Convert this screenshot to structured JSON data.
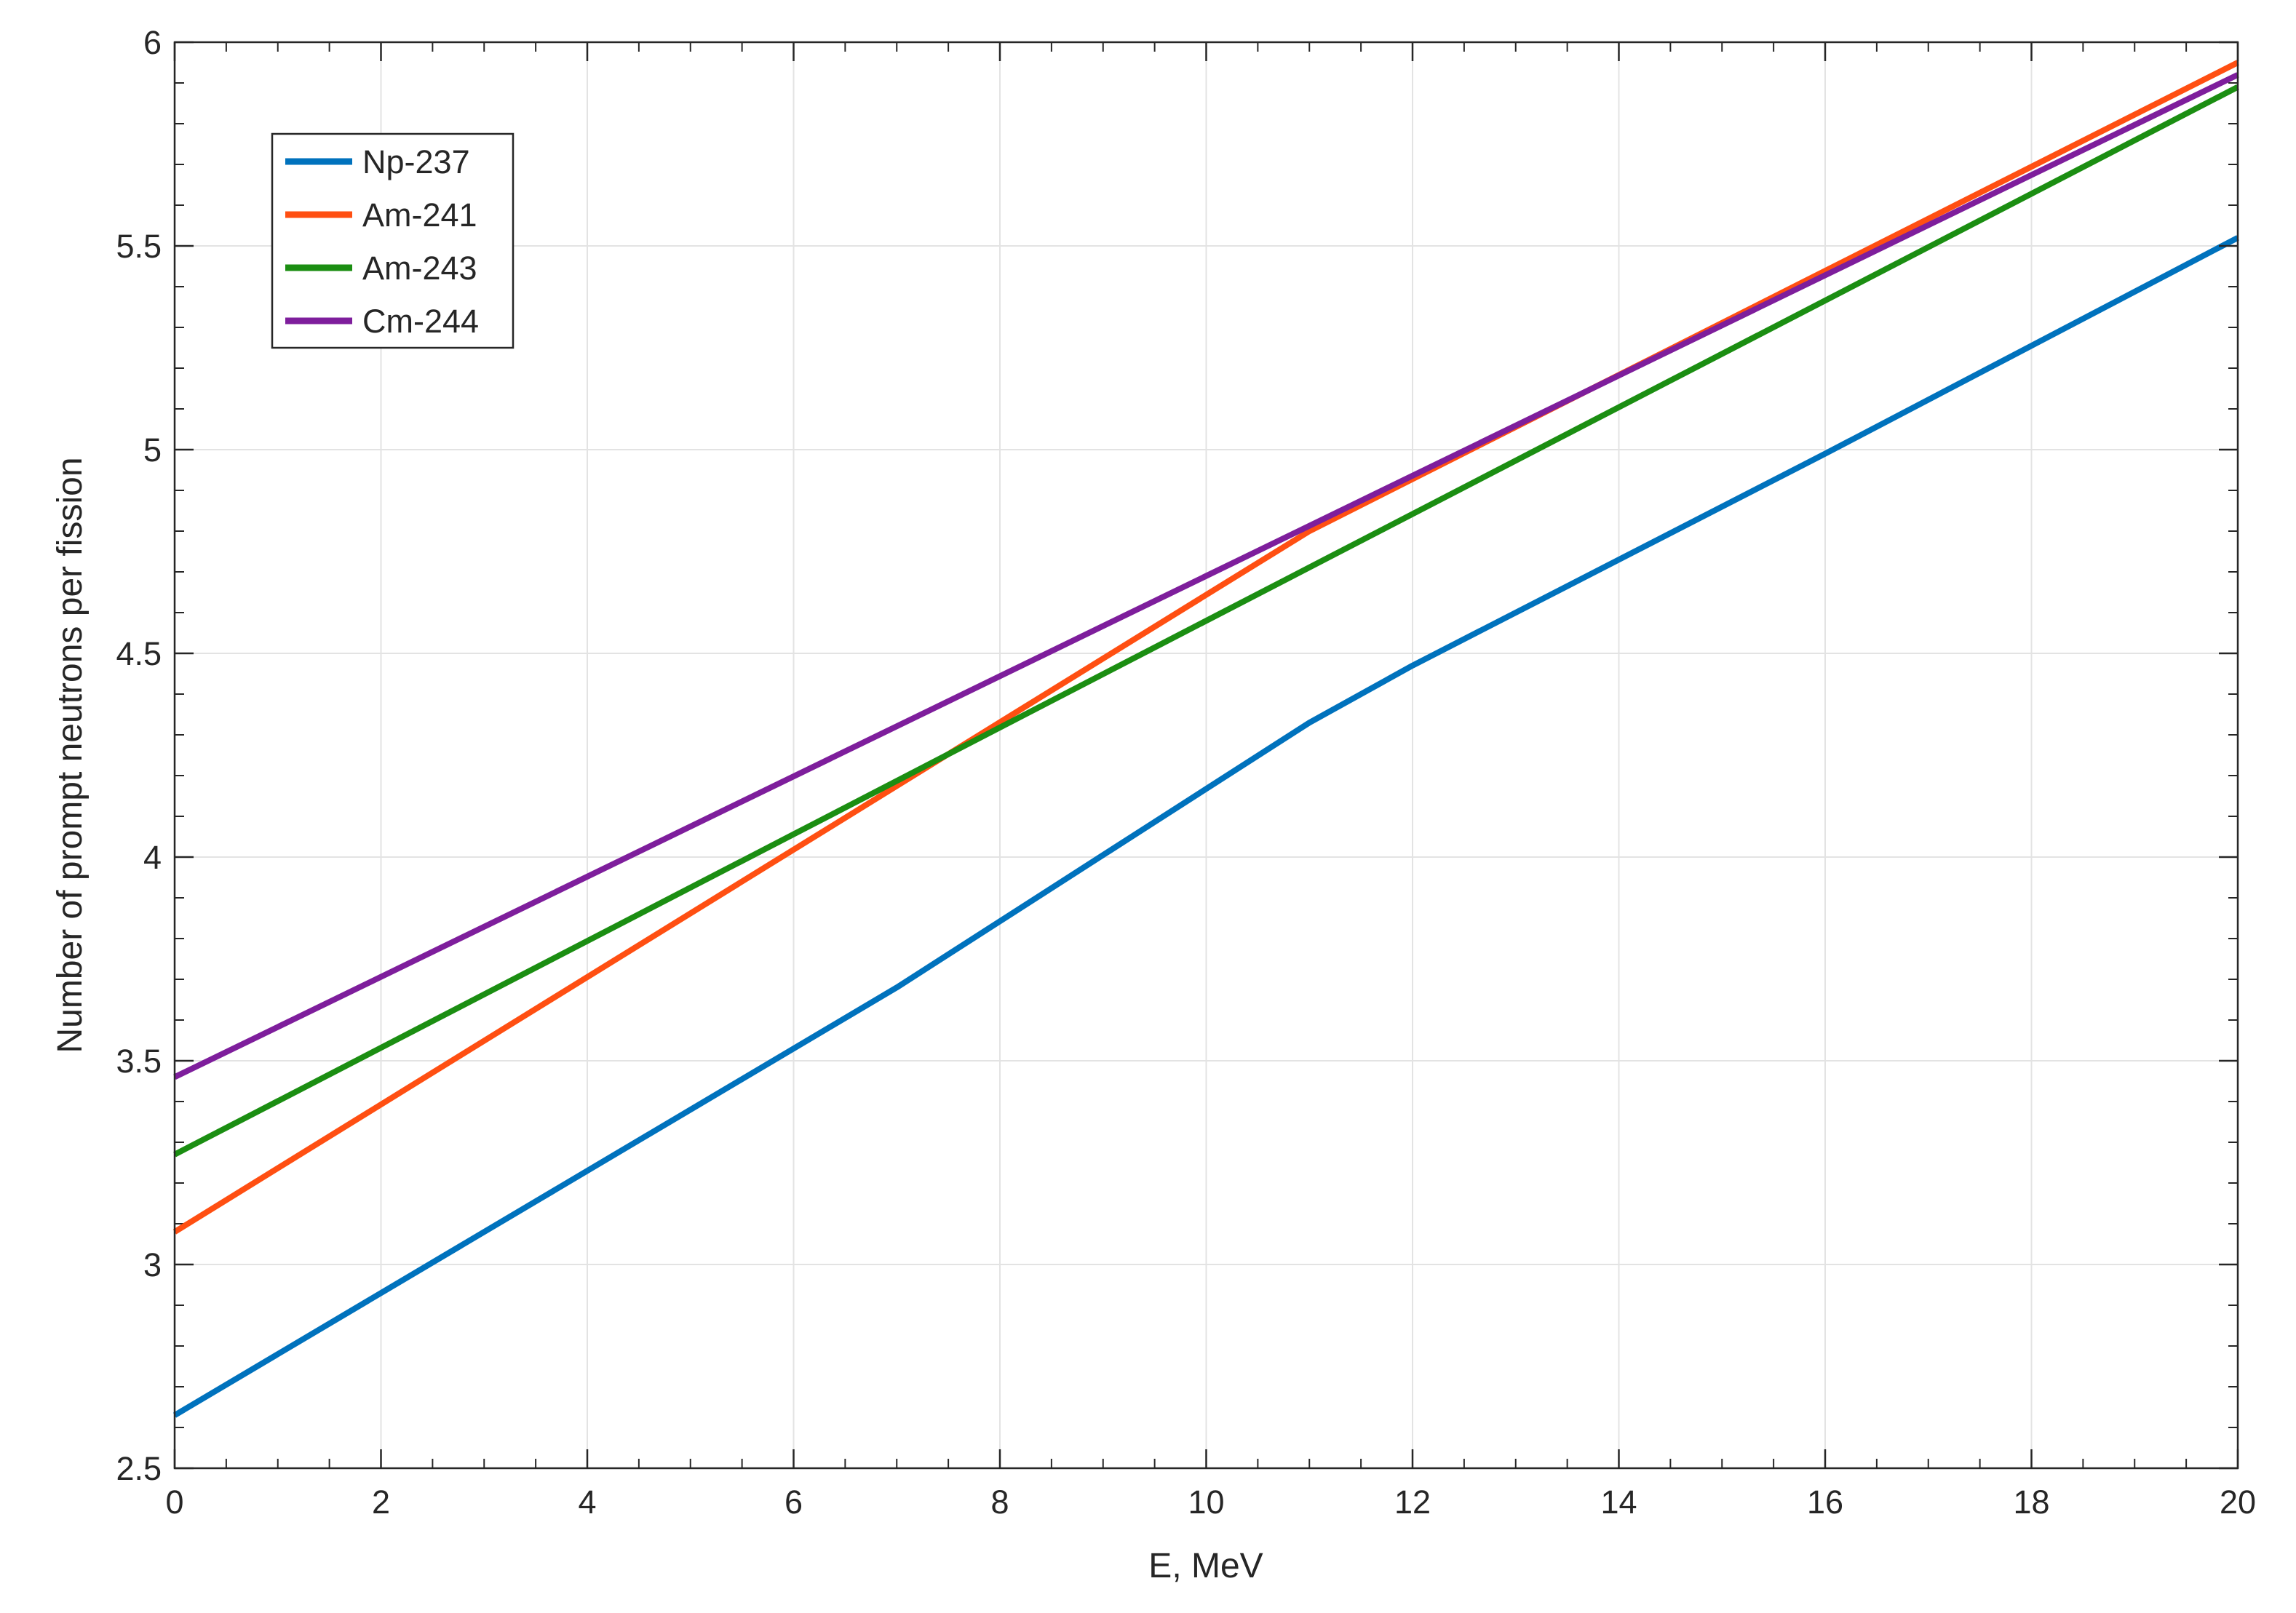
{
  "chart_data": {
    "type": "line",
    "title": "",
    "xlabel": "E, MeV",
    "ylabel": "Number of prompt neutrons per fission",
    "xlim": [
      0,
      20
    ],
    "ylim": [
      2.5,
      6
    ],
    "xticks": [
      0,
      2,
      4,
      6,
      8,
      10,
      12,
      14,
      16,
      18,
      20
    ],
    "xtick_labels": [
      "0",
      "2",
      "4",
      "6",
      "8",
      "10",
      "12",
      "14",
      "16",
      "18",
      "20"
    ],
    "yticks": [
      2.5,
      3,
      3.5,
      4,
      4.5,
      5,
      5.5,
      6
    ],
    "ytick_labels": [
      "2.5",
      "3",
      "3.5",
      "4",
      "4.5",
      "5",
      "5.5",
      "6"
    ],
    "grid": true,
    "legend_position": "top-left",
    "series": [
      {
        "name": "Np-237",
        "color": "#0072BD",
        "x": [
          0,
          7,
          11,
          12,
          16,
          20
        ],
        "y": [
          2.63,
          3.68,
          4.33,
          4.47,
          4.99,
          5.52
        ]
      },
      {
        "name": "Am-241",
        "color": "#FF4F12",
        "x": [
          0,
          11,
          20
        ],
        "y": [
          3.08,
          4.8,
          5.95
        ]
      },
      {
        "name": "Am-243",
        "color": "#1B8E12",
        "x": [
          0,
          20
        ],
        "y": [
          3.27,
          5.89
        ]
      },
      {
        "name": "Cm-244",
        "color": "#7E1E9C",
        "x": [
          0,
          20
        ],
        "y": [
          3.46,
          5.92
        ]
      }
    ]
  }
}
